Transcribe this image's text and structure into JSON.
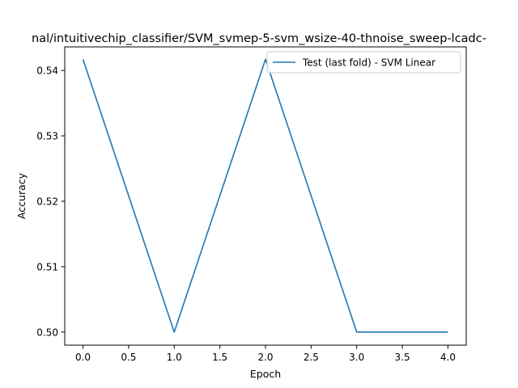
{
  "chart_data": {
    "type": "line",
    "title": "nal/intuitivechip_classifier/SVM_svmep-5-svm_wsize-40-thnoise_sweep-lcadc-",
    "xlabel": "Epoch",
    "ylabel": "Accuracy",
    "xlim": [
      -0.2,
      4.2
    ],
    "ylim": [
      0.498,
      0.5436
    ],
    "xticks": [
      0.0,
      0.5,
      1.0,
      1.5,
      2.0,
      2.5,
      3.0,
      3.5,
      4.0
    ],
    "xtick_labels": [
      "0.0",
      "0.5",
      "1.0",
      "1.5",
      "2.0",
      "2.5",
      "3.0",
      "3.5",
      "4.0"
    ],
    "yticks": [
      0.5,
      0.51,
      0.52,
      0.53,
      0.54
    ],
    "ytick_labels": [
      "0.50",
      "0.51",
      "0.52",
      "0.53",
      "0.54"
    ],
    "grid": false,
    "legend_position": "top-right",
    "series": [
      {
        "name": "Test (last fold) - SVM Linear",
        "color": "#1f77b4",
        "x": [
          0,
          1,
          2,
          3,
          4
        ],
        "y": [
          0.5417,
          0.5,
          0.5417,
          0.5,
          0.5
        ]
      }
    ]
  }
}
